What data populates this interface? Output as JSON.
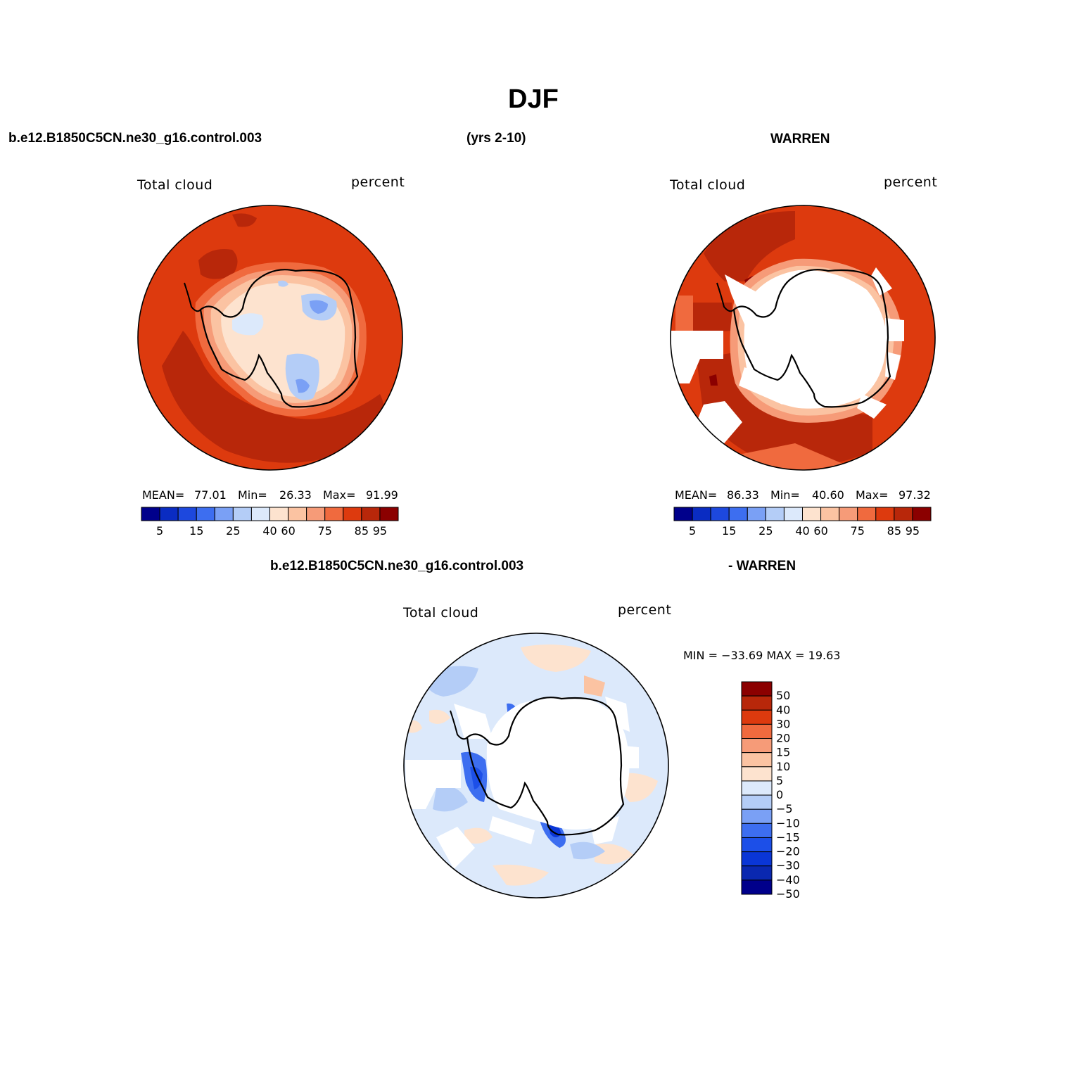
{
  "title": "DJF",
  "header": {
    "case": "b.e12.B1850C5CN.ne30_g16.control.003",
    "years": "(yrs 2-10)",
    "obs": "WARREN"
  },
  "diff_header": {
    "case": "b.e12.B1850C5CN.ne30_g16.control.003",
    "obs": "- WARREN"
  },
  "panels": [
    {
      "id": "model",
      "variable": "Total cloud",
      "units": "percent",
      "stats": {
        "mean_label": "MEAN=",
        "mean": "77.01",
        "min_label": "Min=",
        "min": "26.33",
        "max_label": "Max=",
        "max": "91.99"
      }
    },
    {
      "id": "obs",
      "variable": "Total cloud",
      "units": "percent",
      "stats": {
        "mean_label": "MEAN=",
        "mean": "86.33",
        "min_label": "Min=",
        "min": "40.60",
        "max_label": "Max=",
        "max": "97.32"
      }
    },
    {
      "id": "diff",
      "variable": "Total cloud",
      "units": "percent",
      "stats_text": "MIN = −33.69  MAX =   19.63"
    }
  ],
  "colorbar_abs": {
    "colors": [
      "#00008b",
      "#0a2cc2",
      "#1d48de",
      "#3d6ef0",
      "#7aa0f5",
      "#b4cdf7",
      "#dce9fb",
      "#fde3cf",
      "#fbc3a2",
      "#f69b78",
      "#f06a3e",
      "#dd3a0e",
      "#b8270a",
      "#8b0000"
    ],
    "tick_labels": [
      "5",
      "15",
      "25",
      "40",
      "60",
      "75",
      "85",
      "95"
    ]
  },
  "colorbar_diff": {
    "colors": [
      "#00008b",
      "#0a28b0",
      "#0a36d6",
      "#1c4fe8",
      "#3d6ef0",
      "#7aa0f5",
      "#b4cdf7",
      "#dce9fb",
      "#fde3cf",
      "#fbc3a2",
      "#f69b78",
      "#f06a3e",
      "#dd3a0e",
      "#b8270a",
      "#8b0000"
    ],
    "tick_labels": [
      "50",
      "40",
      "30",
      "20",
      "15",
      "10",
      "5",
      "0",
      "−5",
      "−10",
      "−15",
      "−20",
      "−30",
      "−40",
      "−50"
    ]
  }
}
